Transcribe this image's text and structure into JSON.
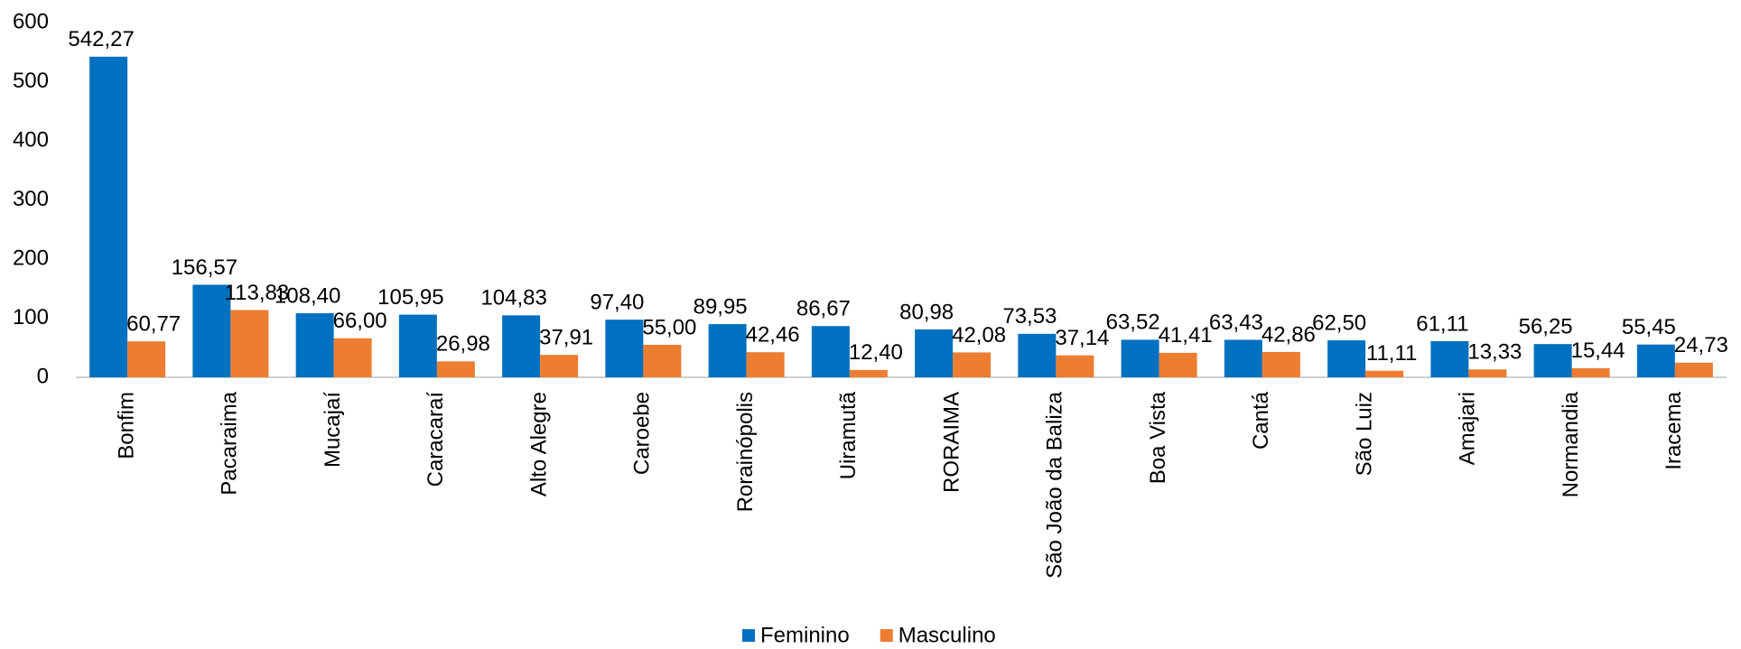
{
  "chart_data": {
    "type": "bar",
    "categories": [
      "Bonfim",
      "Pacaraima",
      "Mucajaí",
      "Caracaraí",
      "Alto Alegre",
      "Caroebe",
      "Rorainópolis",
      "Uiramutã",
      "RORAIMA",
      "São João da Baliza",
      "Boa Vista",
      "Cantá",
      "São Luiz",
      "Amajari",
      "Normandia",
      "Iracema"
    ],
    "series": [
      {
        "name": "Feminino",
        "color": "#0070c0",
        "values": [
          542.27,
          156.57,
          108.4,
          105.95,
          104.83,
          97.4,
          89.95,
          86.67,
          80.98,
          73.53,
          63.52,
          63.43,
          62.5,
          61.11,
          56.25,
          55.45
        ],
        "value_labels": [
          "542,27",
          "156,57",
          "108,40",
          "105,95",
          "104,83",
          "97,40",
          "89,95",
          "86,67",
          "80,98",
          "73,53",
          "63,52",
          "63,43",
          "62,50",
          "61,11",
          "56,25",
          "55,45"
        ]
      },
      {
        "name": "Masculino",
        "color": "#ed7d31",
        "values": [
          60.77,
          113.83,
          66.0,
          26.98,
          37.91,
          55.0,
          42.46,
          12.4,
          42.08,
          37.14,
          41.41,
          42.86,
          11.11,
          13.33,
          15.44,
          24.73
        ],
        "value_labels": [
          "60,77",
          "113,83",
          "66,00",
          "26,98",
          "37,91",
          "55,00",
          "42,46",
          "12,40",
          "42,08",
          "37,14",
          "41,41",
          "42,86",
          "11,11",
          "13,33",
          "15,44",
          "24,73"
        ]
      }
    ],
    "ylim": [
      0,
      600
    ],
    "yticks": [
      0,
      100,
      200,
      300,
      400,
      500,
      600
    ],
    "grid": false,
    "legend": "bottom"
  }
}
